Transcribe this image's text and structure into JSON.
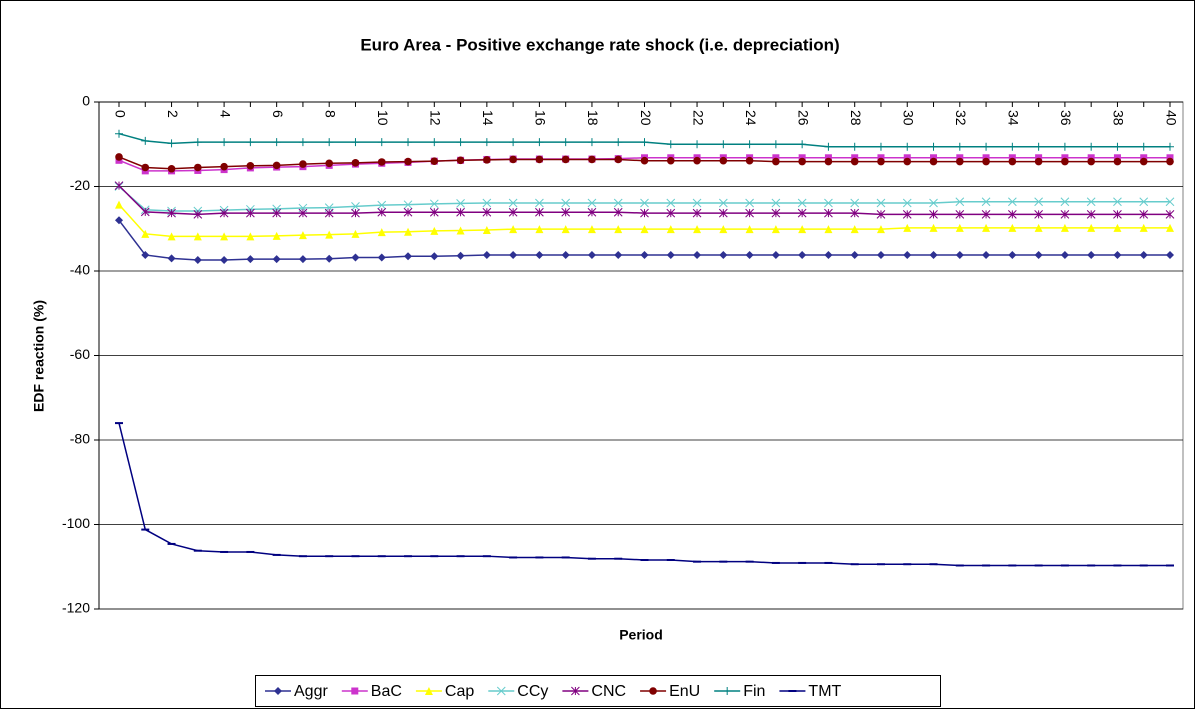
{
  "chart_data": {
    "type": "line",
    "title": "Euro Area - Positive exchange rate shock (i.e. depreciation)",
    "x_label": "Period",
    "y_label": "EDF reaction (%)",
    "categories": [
      "0",
      null,
      "2",
      null,
      "4",
      null,
      "6",
      null,
      "8",
      null,
      "10",
      null,
      "12",
      null,
      "14",
      null,
      "16",
      null,
      "18",
      null,
      "20",
      null,
      "22",
      null,
      "24",
      null,
      "26",
      null,
      "28",
      null,
      "30",
      null,
      "32",
      null,
      "34",
      null,
      "36",
      null,
      "38",
      null,
      "40"
    ],
    "ylim": [
      -120,
      0
    ],
    "yticks": [
      -120,
      -100,
      -80,
      -60,
      -40,
      -20,
      0
    ],
    "grid": true,
    "legend": "bottom",
    "series": [
      {
        "name": "Aggr",
        "color": "#2e3192",
        "marker": "diamond",
        "values": [
          -28,
          -36.2,
          -37,
          -37.4,
          -37.4,
          -37.2,
          -37.2,
          -37.2,
          -37.1,
          -36.8,
          -36.8,
          -36.5,
          -36.5,
          -36.4,
          -36.2,
          -36.2,
          -36.2,
          -36.2,
          -36.2,
          -36.2,
          -36.2,
          -36.2,
          -36.2,
          -36.2,
          -36.2,
          -36.2,
          -36.2,
          -36.2,
          -36.2,
          -36.2,
          -36.2,
          -36.2,
          -36.2,
          -36.2,
          -36.2,
          -36.2,
          -36.2,
          -36.2,
          -36.2,
          -36.2,
          -36.2
        ]
      },
      {
        "name": "BaC",
        "color": "#cc33cc",
        "marker": "square",
        "values": [
          -13.8,
          -16.3,
          -16.3,
          -16.2,
          -16,
          -15.6,
          -15.4,
          -15.3,
          -15,
          -14.7,
          -14.5,
          -14.3,
          -14,
          -13.8,
          -13.6,
          -13.5,
          -13.5,
          -13.5,
          -13.5,
          -13.4,
          -13.2,
          -13.2,
          -13.2,
          -13.2,
          -13.2,
          -13.2,
          -13.2,
          -13.2,
          -13.2,
          -13.2,
          -13.2,
          -13.2,
          -13.2,
          -13.2,
          -13.2,
          -13.2,
          -13.2,
          -13.2,
          -13.2,
          -13.2,
          -13.2
        ]
      },
      {
        "name": "Cap",
        "color": "#ffff00",
        "marker": "triangle",
        "values": [
          -24.3,
          -31.2,
          -31.8,
          -31.8,
          -31.8,
          -31.8,
          -31.7,
          -31.5,
          -31.4,
          -31.2,
          -30.8,
          -30.7,
          -30.5,
          -30.4,
          -30.3,
          -30.1,
          -30.1,
          -30.1,
          -30.1,
          -30.1,
          -30.1,
          -30.1,
          -30.1,
          -30.1,
          -30.1,
          -30.1,
          -30.1,
          -30.1,
          -30.1,
          -30.1,
          -29.8,
          -29.8,
          -29.8,
          -29.8,
          -29.8,
          -29.8,
          -29.8,
          -29.8,
          -29.8,
          -29.8,
          -29.8
        ]
      },
      {
        "name": "CCy",
        "color": "#66cccc",
        "marker": "x",
        "values": [
          -20,
          -25.5,
          -25.8,
          -25.8,
          -25.6,
          -25.4,
          -25.3,
          -25.1,
          -25,
          -24.7,
          -24.4,
          -24.3,
          -24.1,
          -24,
          -23.9,
          -23.9,
          -23.9,
          -23.9,
          -23.9,
          -23.9,
          -23.9,
          -23.9,
          -23.9,
          -23.9,
          -23.9,
          -23.9,
          -23.9,
          -23.9,
          -23.9,
          -23.9,
          -23.9,
          -23.9,
          -23.6,
          -23.6,
          -23.6,
          -23.6,
          -23.6,
          -23.6,
          -23.6,
          -23.6,
          -23.6
        ]
      },
      {
        "name": "CNC",
        "color": "#800080",
        "marker": "star",
        "values": [
          -19.8,
          -26,
          -26.3,
          -26.6,
          -26.3,
          -26.3,
          -26.3,
          -26.3,
          -26.3,
          -26.3,
          -26.1,
          -26.1,
          -26.1,
          -26.1,
          -26.1,
          -26.1,
          -26.1,
          -26.1,
          -26.1,
          -26.1,
          -26.3,
          -26.3,
          -26.3,
          -26.3,
          -26.3,
          -26.3,
          -26.3,
          -26.3,
          -26.3,
          -26.6,
          -26.6,
          -26.6,
          -26.6,
          -26.6,
          -26.6,
          -26.6,
          -26.6,
          -26.6,
          -26.6,
          -26.6,
          -26.6
        ]
      },
      {
        "name": "EnU",
        "color": "#800000",
        "marker": "circle",
        "values": [
          -13,
          -15.5,
          -15.8,
          -15.5,
          -15.3,
          -15.1,
          -15,
          -14.7,
          -14.5,
          -14.4,
          -14.2,
          -14.1,
          -14,
          -13.8,
          -13.7,
          -13.6,
          -13.6,
          -13.6,
          -13.6,
          -13.6,
          -13.9,
          -13.9,
          -13.9,
          -13.9,
          -13.9,
          -14.1,
          -14.1,
          -14.1,
          -14.1,
          -14.1,
          -14.1,
          -14.1,
          -14.1,
          -14.1,
          -14.1,
          -14.1,
          -14.1,
          -14.1,
          -14.1,
          -14.1,
          -14.1
        ]
      },
      {
        "name": "Fin",
        "color": "#008080",
        "marker": "plus",
        "values": [
          -7.5,
          -9.2,
          -9.8,
          -9.5,
          -9.5,
          -9.5,
          -9.5,
          -9.5,
          -9.5,
          -9.5,
          -9.5,
          -9.5,
          -9.5,
          -9.5,
          -9.5,
          -9.5,
          -9.5,
          -9.5,
          -9.5,
          -9.5,
          -9.5,
          -10,
          -10,
          -10,
          -10,
          -10,
          -10,
          -10.6,
          -10.6,
          -10.6,
          -10.6,
          -10.6,
          -10.6,
          -10.6,
          -10.6,
          -10.6,
          -10.6,
          -10.6,
          -10.6,
          -10.6,
          -10.6
        ]
      },
      {
        "name": "TMT",
        "color": "#000080",
        "marker": "dash",
        "values": [
          -76,
          -101.2,
          -104.6,
          -106.2,
          -106.5,
          -106.5,
          -107.2,
          -107.5,
          -107.5,
          -107.5,
          -107.5,
          -107.5,
          -107.5,
          -107.5,
          -107.5,
          -107.8,
          -107.8,
          -107.8,
          -108.1,
          -108.1,
          -108.4,
          -108.4,
          -108.8,
          -108.8,
          -108.8,
          -109.1,
          -109.1,
          -109.1,
          -109.4,
          -109.4,
          -109.4,
          -109.4,
          -109.7,
          -109.7,
          -109.7,
          -109.7,
          -109.7,
          -109.7,
          -109.7,
          -109.7,
          -109.7
        ]
      }
    ]
  }
}
